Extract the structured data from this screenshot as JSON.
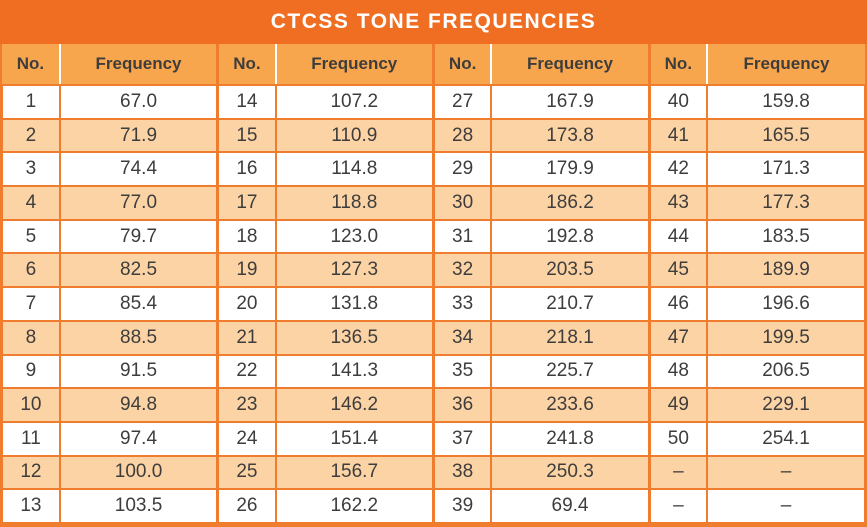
{
  "title": "CTCSS TONE FREQUENCIES",
  "header": {
    "no_label": "No.",
    "frequency_label": "Frequency"
  },
  "table": {
    "rows": [
      [
        "1",
        "67.0",
        "14",
        "107.2",
        "27",
        "167.9",
        "40",
        "159.8"
      ],
      [
        "2",
        "71.9",
        "15",
        "110.9",
        "28",
        "173.8",
        "41",
        "165.5"
      ],
      [
        "3",
        "74.4",
        "16",
        "114.8",
        "29",
        "179.9",
        "42",
        "171.3"
      ],
      [
        "4",
        "77.0",
        "17",
        "118.8",
        "30",
        "186.2",
        "43",
        "177.3"
      ],
      [
        "5",
        "79.7",
        "18",
        "123.0",
        "31",
        "192.8",
        "44",
        "183.5"
      ],
      [
        "6",
        "82.5",
        "19",
        "127.3",
        "32",
        "203.5",
        "45",
        "189.9"
      ],
      [
        "7",
        "85.4",
        "20",
        "131.8",
        "33",
        "210.7",
        "46",
        "196.6"
      ],
      [
        "8",
        "88.5",
        "21",
        "136.5",
        "34",
        "218.1",
        "47",
        "199.5"
      ],
      [
        "9",
        "91.5",
        "22",
        "141.3",
        "35",
        "225.7",
        "48",
        "206.5"
      ],
      [
        "10",
        "94.8",
        "23",
        "146.2",
        "36",
        "233.6",
        "49",
        "229.1"
      ],
      [
        "11",
        "97.4",
        "24",
        "151.4",
        "37",
        "241.8",
        "50",
        "254.1"
      ],
      [
        "12",
        "100.0",
        "25",
        "156.7",
        "38",
        "250.3",
        "–",
        "–"
      ],
      [
        "13",
        "103.5",
        "26",
        "162.2",
        "39",
        "69.4",
        "–",
        "–"
      ]
    ]
  },
  "colors": {
    "title_bar": "#F06E22",
    "header_row": "#F8A64E",
    "stripe_row": "#FBD3A5",
    "grid_border": "#F07D2E",
    "text": "#3E3D3C",
    "title_text": "#FFFFFF"
  }
}
